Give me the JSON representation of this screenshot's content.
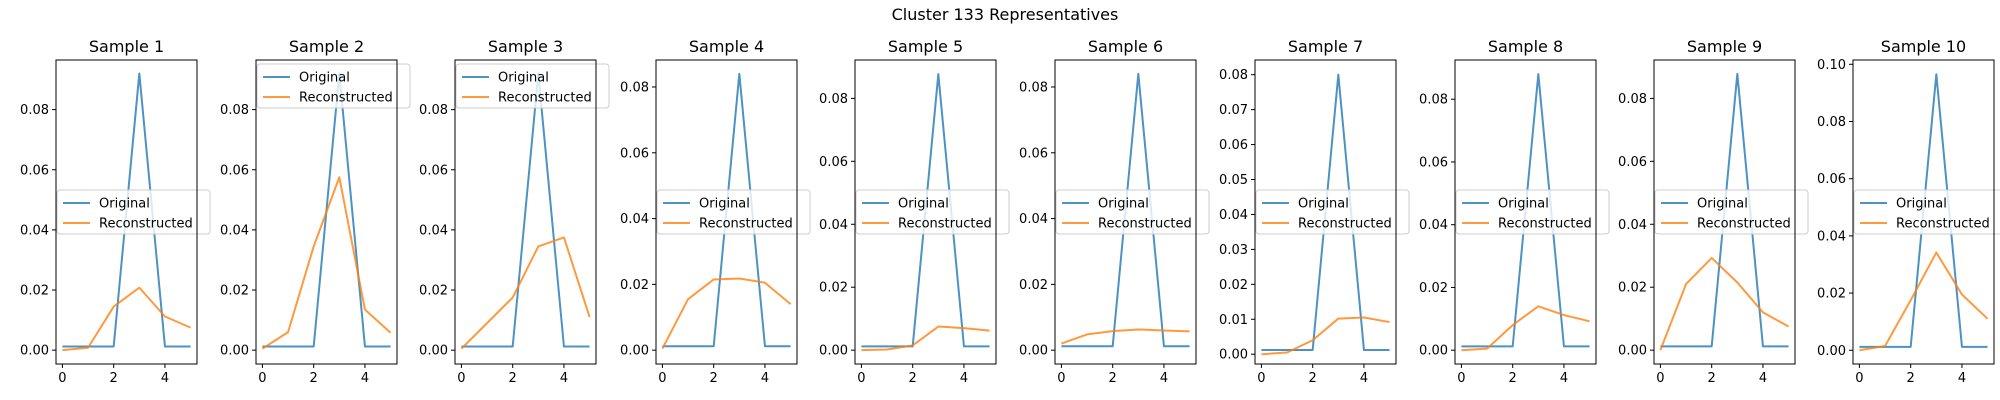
{
  "suptitle": "Cluster 133 Representatives",
  "colors": {
    "original": "#1f77b4",
    "reconstructed": "#ff7f0e"
  },
  "legend": {
    "original": "Original",
    "reconstructed": "Reconstructed"
  },
  "chart_data": [
    {
      "type": "line",
      "title": "Sample 1",
      "x": [
        0,
        1,
        2,
        3,
        4,
        5
      ],
      "xlim": [
        -0.25,
        5.25
      ],
      "ylim": [
        -0.0046,
        0.0965
      ],
      "xticks": [
        0,
        2,
        4
      ],
      "yticks": [
        0,
        0.02,
        0.04,
        0.06,
        0.08
      ],
      "ytick_labels": [
        "0.00",
        "0.02",
        "0.04",
        "0.06",
        "0.08"
      ],
      "legend_position": "center-left",
      "series": [
        {
          "name": "Original",
          "values": [
            0.0012,
            0.0012,
            0.0012,
            0.092,
            0.0012,
            0.0012
          ]
        },
        {
          "name": "Reconstructed",
          "values": [
            0.0,
            0.0008,
            0.0145,
            0.0208,
            0.0112,
            0.0075
          ]
        }
      ]
    },
    {
      "type": "line",
      "title": "Sample 2",
      "x": [
        0,
        1,
        2,
        3,
        4,
        5
      ],
      "xlim": [
        -0.25,
        5.25
      ],
      "ylim": [
        -0.0046,
        0.0965
      ],
      "xticks": [
        0,
        2,
        4
      ],
      "yticks": [
        0,
        0.02,
        0.04,
        0.06,
        0.08
      ],
      "ytick_labels": [
        "0.00",
        "0.02",
        "0.04",
        "0.06",
        "0.08"
      ],
      "legend_position": "upper-left",
      "series": [
        {
          "name": "Original",
          "values": [
            0.0012,
            0.0012,
            0.0012,
            0.092,
            0.0012,
            0.0012
          ]
        },
        {
          "name": "Reconstructed",
          "values": [
            0.0005,
            0.006,
            0.0345,
            0.0575,
            0.0135,
            0.0058
          ]
        }
      ]
    },
    {
      "type": "line",
      "title": "Sample 3",
      "x": [
        0,
        1,
        2,
        3,
        4,
        5
      ],
      "xlim": [
        -0.25,
        5.25
      ],
      "ylim": [
        -0.0046,
        0.0965
      ],
      "xticks": [
        0,
        2,
        4
      ],
      "yticks": [
        0,
        0.02,
        0.04,
        0.06,
        0.08
      ],
      "ytick_labels": [
        "0.00",
        "0.02",
        "0.04",
        "0.06",
        "0.08"
      ],
      "legend_position": "upper-left",
      "series": [
        {
          "name": "Original",
          "values": [
            0.0012,
            0.0012,
            0.0012,
            0.092,
            0.0012,
            0.0012
          ]
        },
        {
          "name": "Reconstructed",
          "values": [
            0.0005,
            0.009,
            0.0175,
            0.0345,
            0.0375,
            0.011
          ]
        }
      ]
    },
    {
      "type": "line",
      "title": "Sample 4",
      "x": [
        0,
        1,
        2,
        3,
        4,
        5
      ],
      "xlim": [
        -0.25,
        5.25
      ],
      "ylim": [
        -0.0042,
        0.0882
      ],
      "xticks": [
        0,
        2,
        4
      ],
      "yticks": [
        0,
        0.02,
        0.04,
        0.06,
        0.08
      ],
      "ytick_labels": [
        "0.00",
        "0.02",
        "0.04",
        "0.06",
        "0.08"
      ],
      "legend_position": "center-left",
      "series": [
        {
          "name": "Original",
          "values": [
            0.0012,
            0.0012,
            0.0012,
            0.084,
            0.0012,
            0.0012
          ]
        },
        {
          "name": "Reconstructed",
          "values": [
            0.0005,
            0.0155,
            0.0215,
            0.0218,
            0.0205,
            0.014
          ]
        }
      ]
    },
    {
      "type": "line",
      "title": "Sample 5",
      "x": [
        0,
        1,
        2,
        3,
        4,
        5
      ],
      "xlim": [
        -0.25,
        5.25
      ],
      "ylim": [
        -0.0044,
        0.0922
      ],
      "xticks": [
        0,
        2,
        4
      ],
      "yticks": [
        0,
        0.02,
        0.04,
        0.06,
        0.08
      ],
      "ytick_labels": [
        "0.00",
        "0.02",
        "0.04",
        "0.06",
        "0.08"
      ],
      "legend_position": "center-left",
      "series": [
        {
          "name": "Original",
          "values": [
            0.0012,
            0.0012,
            0.0012,
            0.0877,
            0.0012,
            0.0012
          ]
        },
        {
          "name": "Reconstructed",
          "values": [
            0.0,
            0.0002,
            0.0015,
            0.0075,
            0.007,
            0.0062
          ]
        }
      ]
    },
    {
      "type": "line",
      "title": "Sample 6",
      "x": [
        0,
        1,
        2,
        3,
        4,
        5
      ],
      "xlim": [
        -0.25,
        5.25
      ],
      "ylim": [
        -0.0042,
        0.0882
      ],
      "xticks": [
        0,
        2,
        4
      ],
      "yticks": [
        0,
        0.02,
        0.04,
        0.06,
        0.08
      ],
      "ytick_labels": [
        "0.00",
        "0.02",
        "0.04",
        "0.06",
        "0.08"
      ],
      "legend_position": "center-left",
      "series": [
        {
          "name": "Original",
          "values": [
            0.0012,
            0.0012,
            0.0012,
            0.084,
            0.0012,
            0.0012
          ]
        },
        {
          "name": "Reconstructed",
          "values": [
            0.002,
            0.0048,
            0.0058,
            0.0063,
            0.006,
            0.0057
          ]
        }
      ]
    },
    {
      "type": "line",
      "title": "Sample 7",
      "x": [
        0,
        1,
        2,
        3,
        4,
        5
      ],
      "xlim": [
        -0.25,
        5.25
      ],
      "ylim": [
        -0.0028,
        0.0842
      ],
      "xticks": [
        0,
        2,
        4
      ],
      "yticks": [
        0,
        0.01,
        0.02,
        0.03,
        0.04,
        0.05,
        0.06,
        0.07,
        0.08
      ],
      "ytick_labels": [
        "0.00",
        "0.01",
        "0.02",
        "0.03",
        "0.04",
        "0.05",
        "0.06",
        "0.07",
        "0.08"
      ],
      "legend_position": "center-left",
      "series": [
        {
          "name": "Original",
          "values": [
            0.0012,
            0.0012,
            0.0012,
            0.08,
            0.0012,
            0.0012
          ]
        },
        {
          "name": "Reconstructed",
          "values": [
            0.0,
            0.0005,
            0.004,
            0.0102,
            0.0105,
            0.0092
          ]
        }
      ]
    },
    {
      "type": "line",
      "title": "Sample 8",
      "x": [
        0,
        1,
        2,
        3,
        4,
        5
      ],
      "xlim": [
        -0.25,
        5.25
      ],
      "ylim": [
        -0.0044,
        0.0925
      ],
      "xticks": [
        0,
        2,
        4
      ],
      "yticks": [
        0,
        0.02,
        0.04,
        0.06,
        0.08
      ],
      "ytick_labels": [
        "0.00",
        "0.02",
        "0.04",
        "0.06",
        "0.08"
      ],
      "legend_position": "center-left",
      "series": [
        {
          "name": "Original",
          "values": [
            0.0012,
            0.0012,
            0.0012,
            0.088,
            0.0012,
            0.0012
          ]
        },
        {
          "name": "Reconstructed",
          "values": [
            0.0,
            0.0005,
            0.008,
            0.014,
            0.0112,
            0.0092
          ]
        }
      ]
    },
    {
      "type": "line",
      "title": "Sample 9",
      "x": [
        0,
        1,
        2,
        3,
        4,
        5
      ],
      "xlim": [
        -0.25,
        5.25
      ],
      "ylim": [
        -0.0044,
        0.0922
      ],
      "xticks": [
        0,
        2,
        4
      ],
      "yticks": [
        0,
        0.02,
        0.04,
        0.06,
        0.08
      ],
      "ytick_labels": [
        "0.00",
        "0.02",
        "0.04",
        "0.06",
        "0.08"
      ],
      "legend_position": "center-left",
      "series": [
        {
          "name": "Original",
          "values": [
            0.0012,
            0.0012,
            0.0012,
            0.0878,
            0.0012,
            0.0012
          ]
        },
        {
          "name": "Reconstructed",
          "values": [
            0.0,
            0.021,
            0.0293,
            0.0215,
            0.012,
            0.0075
          ]
        }
      ]
    },
    {
      "type": "line",
      "title": "Sample 10",
      "x": [
        0,
        1,
        2,
        3,
        4,
        5
      ],
      "xlim": [
        -0.25,
        5.25
      ],
      "ylim": [
        -0.0048,
        0.1015
      ],
      "xticks": [
        0,
        2,
        4
      ],
      "yticks": [
        0,
        0.02,
        0.04,
        0.06,
        0.08,
        0.1
      ],
      "ytick_labels": [
        "0.00",
        "0.02",
        "0.04",
        "0.06",
        "0.08",
        "0.10"
      ],
      "legend_position": "center-left",
      "series": [
        {
          "name": "Original",
          "values": [
            0.0012,
            0.0012,
            0.0012,
            0.0965,
            0.0012,
            0.0012
          ]
        },
        {
          "name": "Reconstructed",
          "values": [
            0.0,
            0.0015,
            0.0175,
            0.0342,
            0.0195,
            0.011
          ]
        }
      ]
    }
  ]
}
